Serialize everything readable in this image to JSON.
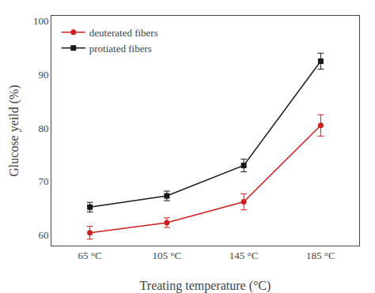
{
  "chart_data": {
    "type": "line",
    "x": [
      65,
      105,
      145,
      185
    ],
    "xlabel": "Treating temperature (°C)",
    "ylabel": "Glucose yeild (%)",
    "xlim": [
      45,
      205
    ],
    "xticks": [
      {
        "value": 65,
        "label": "65 °C"
      },
      {
        "value": 105,
        "label": "105 °C"
      },
      {
        "value": 145,
        "label": "145 °C"
      },
      {
        "value": 185,
        "label": "185 °C"
      }
    ],
    "ylim": [
      58,
      101
    ],
    "yticks": [
      60,
      70,
      80,
      90,
      100
    ],
    "grid": false,
    "legend": "upper left",
    "series": [
      {
        "name": "deuterated fibers",
        "color": "#cc2020",
        "marker": "circle",
        "values": [
          60.4,
          62.3,
          66.2,
          80.5
        ],
        "yerr": [
          1.2,
          0.9,
          1.5,
          2.0
        ]
      },
      {
        "name": "protiated fibers",
        "color": "#1a1a1a",
        "marker": "square",
        "values": [
          65.2,
          67.3,
          73.0,
          92.5
        ],
        "yerr": [
          0.9,
          0.9,
          1.2,
          1.5
        ]
      }
    ]
  }
}
